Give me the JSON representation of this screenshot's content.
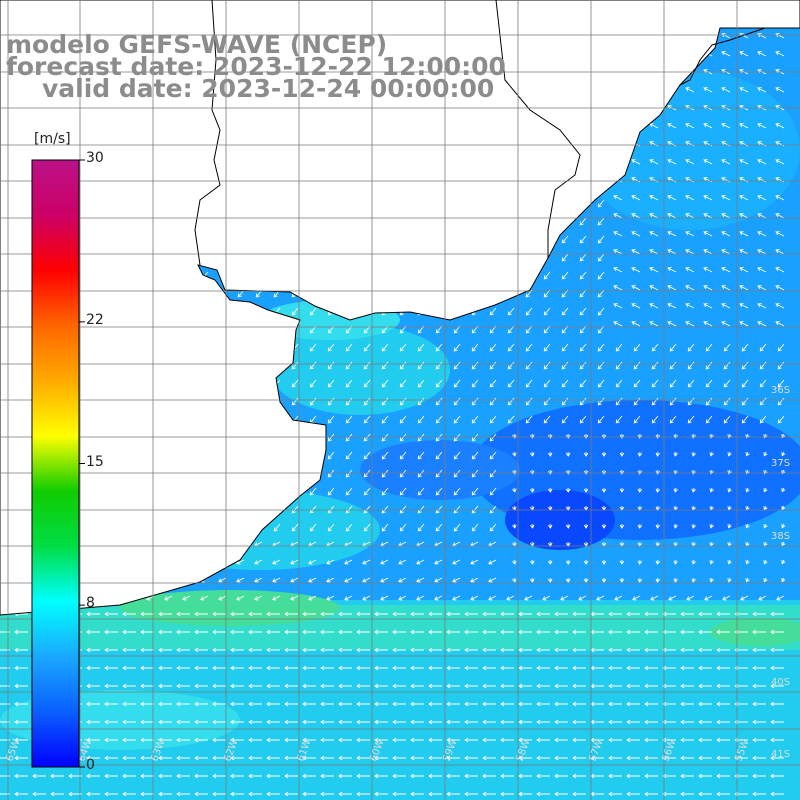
{
  "title": {
    "line1": "modelo GEFS-WAVE (NCEP)",
    "line2": "forecast date: 2023-12-22 12:00:00",
    "line3": "valid date: 2023-12-24 00:00:00"
  },
  "colorbar": {
    "unit": "[m/s]",
    "ticks": [
      {
        "label": "30",
        "value": 30
      },
      {
        "label": "22",
        "value": 22
      },
      {
        "label": "15",
        "value": 15
      },
      {
        "label": "8",
        "value": 8
      },
      {
        "label": "0",
        "value": 0
      }
    ],
    "min": 0,
    "max": 30,
    "colors": [
      "#0000ff",
      "#0a60ff",
      "#1aa8ff",
      "#00ffff",
      "#00dd44",
      "#11cc00",
      "#ffff00",
      "#ffaa00",
      "#ff6600",
      "#ff0000",
      "#cc0066",
      "#bb1188"
    ]
  },
  "grid": {
    "lat_labels": [
      "36S",
      "37S",
      "38S",
      "40S",
      "41S"
    ],
    "lon_labels": [
      "65W",
      "64W",
      "63W",
      "62W",
      "61W",
      "60W",
      "59W",
      "58W",
      "57W",
      "56W",
      "55W"
    ]
  },
  "colors": {
    "land": "#ffffff",
    "coast": "#000000",
    "grid": "#7a7a7a",
    "arrows": "#ffffff",
    "title": "#8c8c8c"
  }
}
